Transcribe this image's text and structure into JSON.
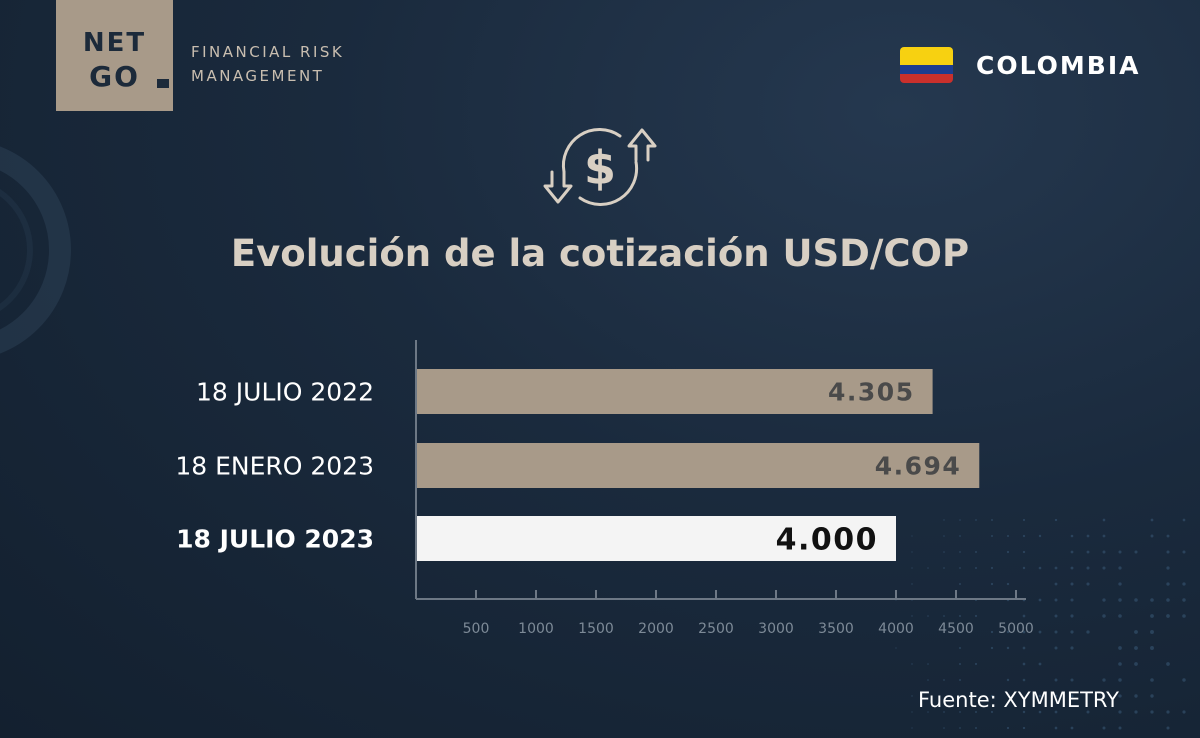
{
  "brand": {
    "logo_line1": "NET",
    "logo_line2": "GO",
    "tagline_line1": "FINANCIAL RISK",
    "tagline_line2": "MANAGEMENT"
  },
  "country": {
    "name": "COLOMBIA",
    "flag_colors": [
      "#f7d111",
      "#1d3d8f",
      "#c9302c"
    ]
  },
  "icon": "currency-exchange-icon",
  "colors": {
    "bar_past": "#a89a89",
    "bar_current": "#f4f4f4",
    "bar_label_past": "#4a4a4a",
    "bar_label_current": "#111111",
    "axis": "#6d7885",
    "category_label": "#ffffff",
    "title": "#d8cfc3"
  },
  "chart_data": {
    "type": "bar",
    "orientation": "horizontal",
    "title": "Evolución de la cotización USD/COP",
    "categories": [
      "18 JULIO 2022",
      "18 ENERO 2023",
      "18 JULIO 2023"
    ],
    "values": [
      4305,
      4694,
      4000
    ],
    "value_labels": [
      "4.305",
      "4.694",
      "4.000"
    ],
    "highlight_index": 2,
    "xlim": [
      0,
      5000
    ],
    "x_ticks": [
      500,
      1000,
      1500,
      2000,
      2500,
      3000,
      3500,
      4000,
      4500,
      5000
    ],
    "xlabel": "",
    "ylabel": "",
    "grid": false
  },
  "source": "Fuente: XYMMETRY"
}
